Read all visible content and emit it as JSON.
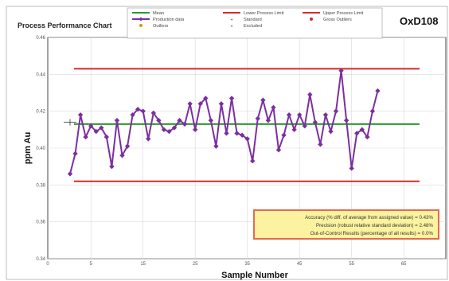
{
  "chart_data": {
    "type": "line",
    "title": "Process Performance Chart",
    "subtitle": "OxD108",
    "xlabel": "Sample Number",
    "ylabel": "ppm Au",
    "xlim": [
      0,
      65
    ],
    "ylim": [
      0.34,
      0.46
    ],
    "xticks": [
      "0",
      "5",
      "15",
      "25",
      "35",
      "45",
      "55",
      "65"
    ],
    "yticks": [
      "0.46",
      "0.44",
      "0.42",
      "0.40",
      "0.38",
      "0.36",
      "0.34"
    ],
    "grid": true,
    "legend_position": "top",
    "legend": [
      {
        "label": "Mean",
        "color": "#2a9a2a",
        "marker": "line"
      },
      {
        "label": "Lower Process Limit",
        "color": "#d42a2a",
        "marker": "line"
      },
      {
        "label": "Upper Process Limit",
        "color": "#d42a2a",
        "marker": "line"
      },
      {
        "label": "Production data",
        "color": "#7b2fa0",
        "marker": "line-diamond"
      },
      {
        "label": "Standard",
        "color": "#333333",
        "marker": "plus"
      },
      {
        "label": "Gross Outliers",
        "color": "#d42a2a",
        "marker": "dot"
      },
      {
        "label": "Outliers",
        "color": "#c8a000",
        "marker": "dot"
      },
      {
        "label": "Excluded",
        "color": "#555555",
        "marker": "x"
      }
    ],
    "reference_lines": {
      "mean": 0.413,
      "lower_process_limit": 0.382,
      "upper_process_limit": 0.443,
      "standard": 0.414
    },
    "series": [
      {
        "name": "Production data",
        "color": "#7b2fa0",
        "x": [
          1,
          2,
          3,
          4,
          5,
          6,
          7,
          8,
          9,
          10,
          11,
          12,
          13,
          14,
          15,
          16,
          17,
          18,
          19,
          20,
          21,
          22,
          23,
          24,
          25,
          26,
          27,
          28,
          29,
          30,
          31,
          32,
          33,
          34,
          35,
          36,
          37,
          38,
          39,
          40,
          41,
          42,
          43,
          44,
          45,
          46,
          47,
          48,
          49,
          50,
          51,
          52,
          53,
          54,
          55,
          56,
          57,
          58,
          59
        ],
        "values": [
          0.386,
          0.397,
          0.418,
          0.406,
          0.412,
          0.409,
          0.411,
          0.406,
          0.39,
          0.415,
          0.396,
          0.401,
          0.418,
          0.421,
          0.42,
          0.405,
          0.419,
          0.415,
          0.41,
          0.409,
          0.411,
          0.415,
          0.413,
          0.424,
          0.41,
          0.424,
          0.427,
          0.415,
          0.401,
          0.424,
          0.408,
          0.427,
          0.408,
          0.407,
          0.405,
          0.393,
          0.416,
          0.426,
          0.415,
          0.422,
          0.399,
          0.407,
          0.418,
          0.41,
          0.418,
          0.412,
          0.429,
          0.414,
          0.402,
          0.418,
          0.409,
          0.42,
          0.442,
          0.415,
          0.389,
          0.408,
          0.41,
          0.406,
          0.42
        ]
      }
    ],
    "extra_series_tail": [
      0.431
    ]
  },
  "stats": {
    "accuracy": "Accuracy (% diff. of average from assigned value) = 0.43%",
    "precision": "Precision (robust relative standard deviation) = 2.48%",
    "out_of_control": "Out-of-Control Results (percentage of all results) = 0.0%"
  }
}
